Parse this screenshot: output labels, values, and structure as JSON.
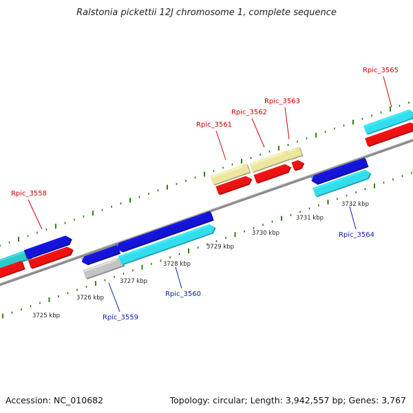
{
  "title": "Ralstonia pickettii 12J chromosome 1, complete sequence",
  "footer": {
    "accession": "Accession: NC_010682",
    "topology": "Topology: circular; Length: 3,942,557 bp; Genes: 3,767"
  },
  "colors": {
    "backbone": "#8a8a8a",
    "tick": "#2e7d12",
    "label_top": "#cc0000",
    "label_bottom": "#0a1aa8",
    "blue": "#1414d6",
    "red": "#ee1111",
    "cyan": "#33ddee",
    "khaki": "#ece6a0",
    "gray": "#c4c4c4",
    "teal": "#30c8c8"
  },
  "ticks": [
    "3725 kbp",
    "3726 kbp",
    "3727 kbp",
    "3728 kbp",
    "3729 kbp",
    "3730 kbp",
    "3731 kbp",
    "3732 kbp"
  ],
  "genes": {
    "g3558": "Rpic_3558",
    "g3559": "Rpic_3559",
    "g3560": "Rpic_3560",
    "g3561": "Rpic_3561",
    "g3562": "Rpic_3562",
    "g3563": "Rpic_3563",
    "g3564": "Rpic_3564",
    "g3565": "Rpic_3565"
  }
}
